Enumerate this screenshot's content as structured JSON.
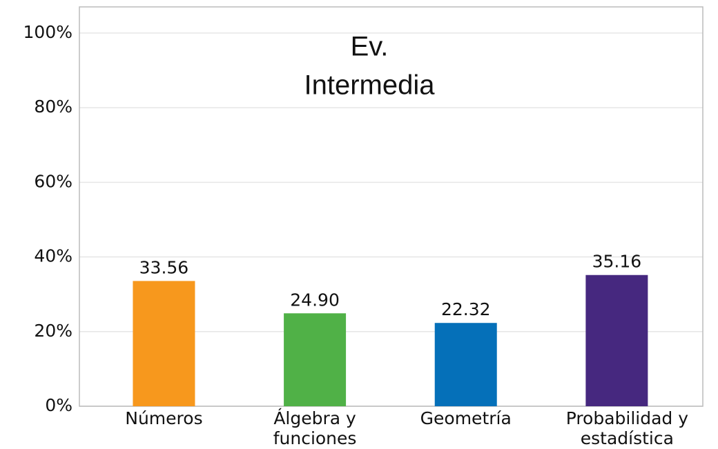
{
  "chart_data": {
    "type": "bar",
    "title": [
      "Ev.",
      "Intermedia"
    ],
    "categories": [
      [
        "Números"
      ],
      [
        "Álgebra y",
        "funciones"
      ],
      [
        "Geometría"
      ],
      [
        "Probabilidad y",
        "estadística"
      ]
    ],
    "values": [
      33.56,
      24.9,
      22.32,
      35.16
    ],
    "value_labels": [
      "33.56",
      "24.90",
      "22.32",
      "35.16"
    ],
    "colors": [
      "#f7981d",
      "#50b147",
      "#0570b9",
      "#46287f"
    ],
    "ylim": [
      0,
      107
    ],
    "yticks": [
      {
        "value": 0,
        "label": "0%"
      },
      {
        "value": 20,
        "label": "20%"
      },
      {
        "value": 40,
        "label": "40%"
      },
      {
        "value": 60,
        "label": "60%"
      },
      {
        "value": 80,
        "label": "80%"
      },
      {
        "value": 100,
        "label": "100%"
      }
    ],
    "grid": true
  }
}
